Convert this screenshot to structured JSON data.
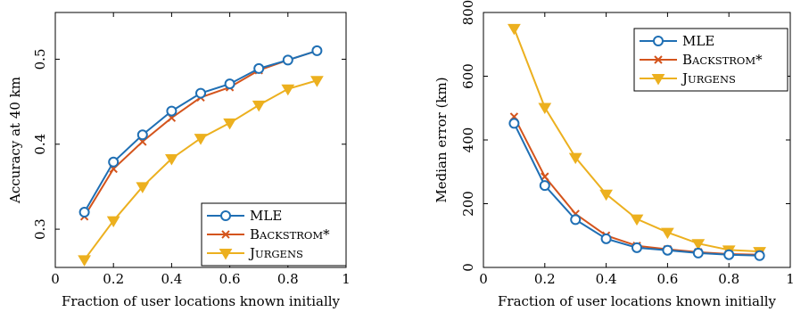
{
  "chart_data": [
    {
      "type": "line",
      "xlabel": "Fraction of user locations known initially",
      "ylabel": "Accuracy at 40 km",
      "xlim": [
        0,
        1
      ],
      "ylim": [
        0.255,
        0.555
      ],
      "xticks": [
        0,
        0.2,
        0.4,
        0.6,
        0.8,
        1
      ],
      "yticks": [
        0.3,
        0.4,
        0.5
      ],
      "x": [
        0.1,
        0.2,
        0.3,
        0.4,
        0.5,
        0.6,
        0.7,
        0.8,
        0.9
      ],
      "legend_position": "bottom-right",
      "series": [
        {
          "name": "MLE",
          "color": "#1f6fb4",
          "marker": "circle",
          "values": [
            0.32,
            0.379,
            0.411,
            0.439,
            0.46,
            0.471,
            0.489,
            0.499,
            0.51
          ]
        },
        {
          "name": "Backstrom*",
          "color": "#d4541c",
          "marker": "x",
          "values": [
            0.315,
            0.371,
            0.403,
            0.431,
            0.455,
            0.467,
            0.487,
            0.499,
            0.51
          ]
        },
        {
          "name": "Jurgens",
          "color": "#ecb01f",
          "marker": "triangle-down",
          "values": [
            0.264,
            0.31,
            0.35,
            0.383,
            0.407,
            0.425,
            0.446,
            0.465,
            0.475
          ]
        }
      ]
    },
    {
      "type": "line",
      "xlabel": "Fraction of user locations known initially",
      "ylabel": "Median error (km)",
      "xlim": [
        0,
        1
      ],
      "ylim": [
        0,
        800
      ],
      "xticks": [
        0,
        0.2,
        0.4,
        0.6,
        0.8,
        1
      ],
      "yticks": [
        0,
        200,
        400,
        600,
        800
      ],
      "x": [
        0.1,
        0.2,
        0.3,
        0.4,
        0.5,
        0.6,
        0.7,
        0.8,
        0.9
      ],
      "legend_position": "top-right",
      "series": [
        {
          "name": "MLE",
          "color": "#1f6fb4",
          "marker": "circle",
          "values": [
            452,
            257,
            150,
            90,
            62,
            54,
            45,
            40,
            37
          ]
        },
        {
          "name": "Backstrom*",
          "color": "#d4541c",
          "marker": "x",
          "values": [
            473,
            285,
            168,
            100,
            68,
            57,
            48,
            42,
            40
          ]
        },
        {
          "name": "Jurgens",
          "color": "#ecb01f",
          "marker": "triangle-down",
          "values": [
            750,
            502,
            345,
            230,
            152,
            110,
            75,
            55,
            50
          ]
        }
      ]
    }
  ]
}
